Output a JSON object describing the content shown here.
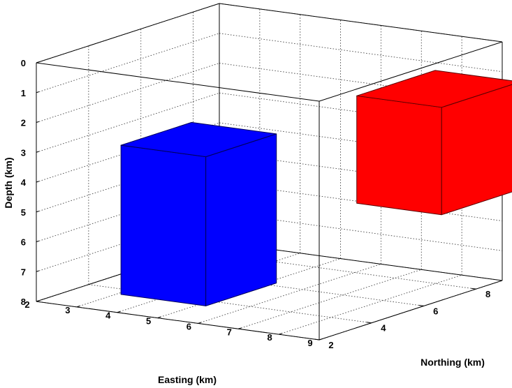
{
  "chart_data": {
    "type": "3d-box",
    "xlabel": "Easting (km)",
    "ylabel": "Northing (km)",
    "zlabel": "Depth (km)",
    "xlim": [
      2,
      9
    ],
    "ylim": [
      2,
      9
    ],
    "zlim": [
      0,
      8
    ],
    "z_reversed": true,
    "x_ticks": [
      "2",
      "3",
      "4",
      "5",
      "6",
      "7",
      "8",
      "9"
    ],
    "y_ticks": [
      "2",
      "4",
      "6",
      "8"
    ],
    "z_ticks": [
      "0",
      "1",
      "2",
      "3",
      "4",
      "5",
      "6",
      "7",
      "8"
    ],
    "grid": true,
    "series": [
      {
        "color": "#0000ff",
        "easting": [
          3.9,
          6.0
        ],
        "northing": [
          2.3,
          5.0
        ],
        "depth": [
          2.5,
          7.5
        ]
      },
      {
        "color": "#ff0000",
        "easting": [
          7.6,
          9.7
        ],
        "northing": [
          5.6,
          8.6
        ],
        "depth": [
          1.1,
          4.7
        ]
      }
    ]
  }
}
